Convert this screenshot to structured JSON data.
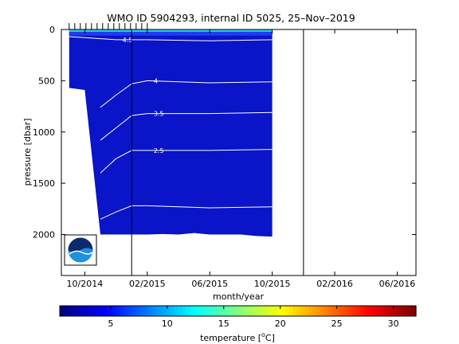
{
  "chart_data": [
    {
      "type": "heatmap",
      "title": "WMO ID 5904293, internal ID 5025, 25–Nov–2019",
      "xlabel": "month/year",
      "ylabel": "pressure [dbar]",
      "x_ticks": [
        "10/2014",
        "02/2015",
        "06/2015",
        "10/2015",
        "02/2016",
        "06/2016"
      ],
      "y_ticks": [
        0,
        500,
        1000,
        1500,
        2000
      ],
      "ylim": [
        2400,
        0
      ],
      "y_reversed": true,
      "colormap": "jet",
      "profile_start": "10/2014",
      "profile_end": "10/2015",
      "contour_labels": [
        "4.5",
        "4",
        "3.5",
        "2.5"
      ],
      "bottom_profile_dbar": [
        [
          "09/2014",
          570
        ],
        [
          "10/2014",
          590
        ],
        [
          "11/2014",
          2000
        ],
        [
          "12/2014",
          2000
        ],
        [
          "01/2015",
          2000
        ],
        [
          "02/2015",
          2000
        ],
        [
          "03/2015",
          1995
        ],
        [
          "04/2015",
          2000
        ],
        [
          "05/2015",
          1985
        ],
        [
          "06/2015",
          2000
        ],
        [
          "07/2015",
          2000
        ],
        [
          "08/2015",
          2000
        ],
        [
          "09/2015",
          2015
        ],
        [
          "10/2015",
          2020
        ]
      ],
      "isotherms": [
        {
          "label": "4.5",
          "points": [
            [
              "09/2014",
              70
            ],
            [
              "10/2014",
              80
            ],
            [
              "11/2014",
              90
            ],
            [
              "12/2014",
              100
            ],
            [
              "02/2015",
              100
            ],
            [
              "06/2015",
              110
            ],
            [
              "10/2015",
              100
            ]
          ]
        },
        {
          "label": "4",
          "points": [
            [
              "11/2014",
              760
            ],
            [
              "12/2014",
              640
            ],
            [
              "01/2015",
              530
            ],
            [
              "02/2015",
              500
            ],
            [
              "06/2015",
              520
            ],
            [
              "10/2015",
              510
            ]
          ]
        },
        {
          "label": "3.5",
          "points": [
            [
              "11/2014",
              1080
            ],
            [
              "12/2014",
              960
            ],
            [
              "01/2015",
              840
            ],
            [
              "02/2015",
              820
            ],
            [
              "06/2015",
              820
            ],
            [
              "10/2015",
              810
            ]
          ]
        },
        {
          "label": "2.5",
          "points": [
            [
              "11/2014",
              1400
            ],
            [
              "12/2014",
              1260
            ],
            [
              "01/2015",
              1180
            ],
            [
              "02/2015",
              1180
            ],
            [
              "06/2015",
              1180
            ],
            [
              "10/2015",
              1170
            ]
          ]
        },
        {
          "label": "",
          "points": [
            [
              "11/2014",
              1850
            ],
            [
              "12/2014",
              1780
            ],
            [
              "01/2015",
              1720
            ],
            [
              "02/2015",
              1720
            ],
            [
              "06/2015",
              1740
            ],
            [
              "10/2015",
              1730
            ]
          ]
        }
      ],
      "vertical_markers": [
        "01/2015",
        "12/2015"
      ]
    },
    {
      "type": "colorbar",
      "xlabel": "temperature [°C]",
      "xlabel_base": "temperature [",
      "xlabel_unit_sup": "o",
      "xlabel_unit": "C]",
      "x_ticks": [
        5,
        10,
        15,
        20,
        25,
        30
      ],
      "xlim": [
        0.5,
        32
      ]
    }
  ],
  "logo_text": "NOAA"
}
